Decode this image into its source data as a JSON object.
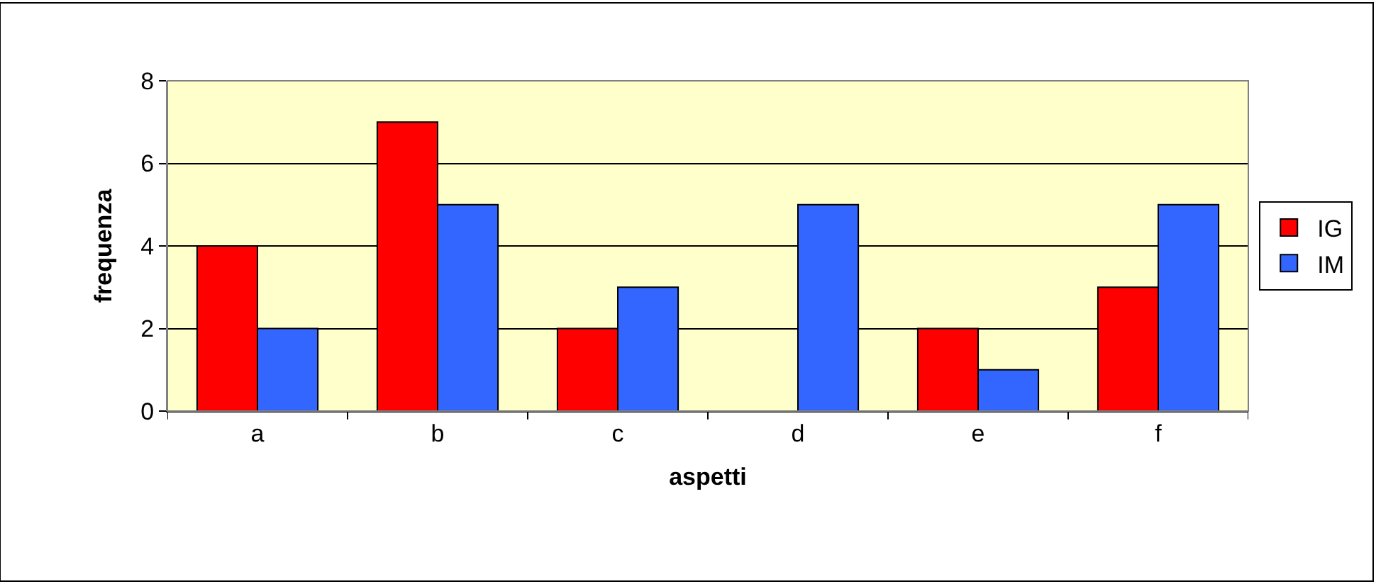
{
  "chart_data": {
    "type": "bar",
    "xlabel": "aspetti",
    "ylabel": "frequenza",
    "categories": [
      "a",
      "b",
      "c",
      "d",
      "e",
      "f"
    ],
    "series": [
      {
        "name": "IG",
        "color": "#ff0000",
        "values": [
          4,
          7,
          2,
          0,
          2,
          3
        ]
      },
      {
        "name": "IM",
        "color": "#3366ff",
        "values": [
          2,
          5,
          3,
          5,
          1,
          5
        ]
      }
    ],
    "ylim": [
      0,
      8
    ],
    "yticks": [
      0,
      2,
      4,
      6,
      8
    ],
    "grid": "y",
    "legend": "right"
  }
}
